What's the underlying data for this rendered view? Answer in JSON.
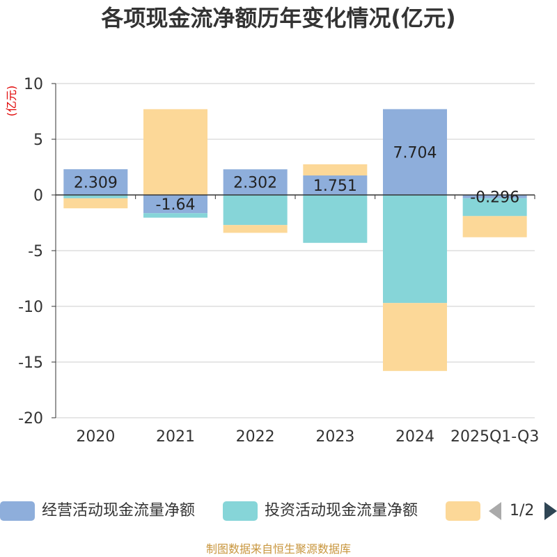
{
  "chart_data": {
    "type": "bar",
    "stacked": true,
    "title": "各项现金流净额历年变化情况(亿元)",
    "ylabel": "(亿元)",
    "ylim": [
      -20,
      10
    ],
    "yticks": [
      10,
      5,
      0,
      -5,
      -10,
      -15,
      -20
    ],
    "categories": [
      "2020",
      "2021",
      "2022",
      "2023",
      "2024",
      "2025Q1-Q3"
    ],
    "series": [
      {
        "name": "经营活动现金流量净额",
        "color": "#8eaedb",
        "values": [
          2.309,
          -1.64,
          2.302,
          1.751,
          7.704,
          -0.296
        ],
        "labels": [
          "2.309",
          "-1.64",
          "2.302",
          "1.751",
          "7.704",
          "-0.296"
        ]
      },
      {
        "name": "投资活动现金流量净额",
        "color": "#86d5d8",
        "values": [
          -0.3,
          -0.4,
          -2.7,
          -4.3,
          -9.7,
          -1.6
        ]
      },
      {
        "name": "",
        "color": "#fcd898",
        "values": [
          -0.9,
          7.7,
          -0.7,
          1.0,
          -6.1,
          -1.9
        ]
      }
    ],
    "legend_position": "bottom",
    "grid": true
  },
  "legend": {
    "items": [
      {
        "label": "经营活动现金流量净额",
        "color": "#8eaedb"
      },
      {
        "label": "投资活动现金流量净额",
        "color": "#86d5d8"
      },
      {
        "label": "",
        "color": "#fcd898"
      }
    ],
    "pager_text": "1/2"
  },
  "source_text": "制图数据来自恒生聚源数据库"
}
